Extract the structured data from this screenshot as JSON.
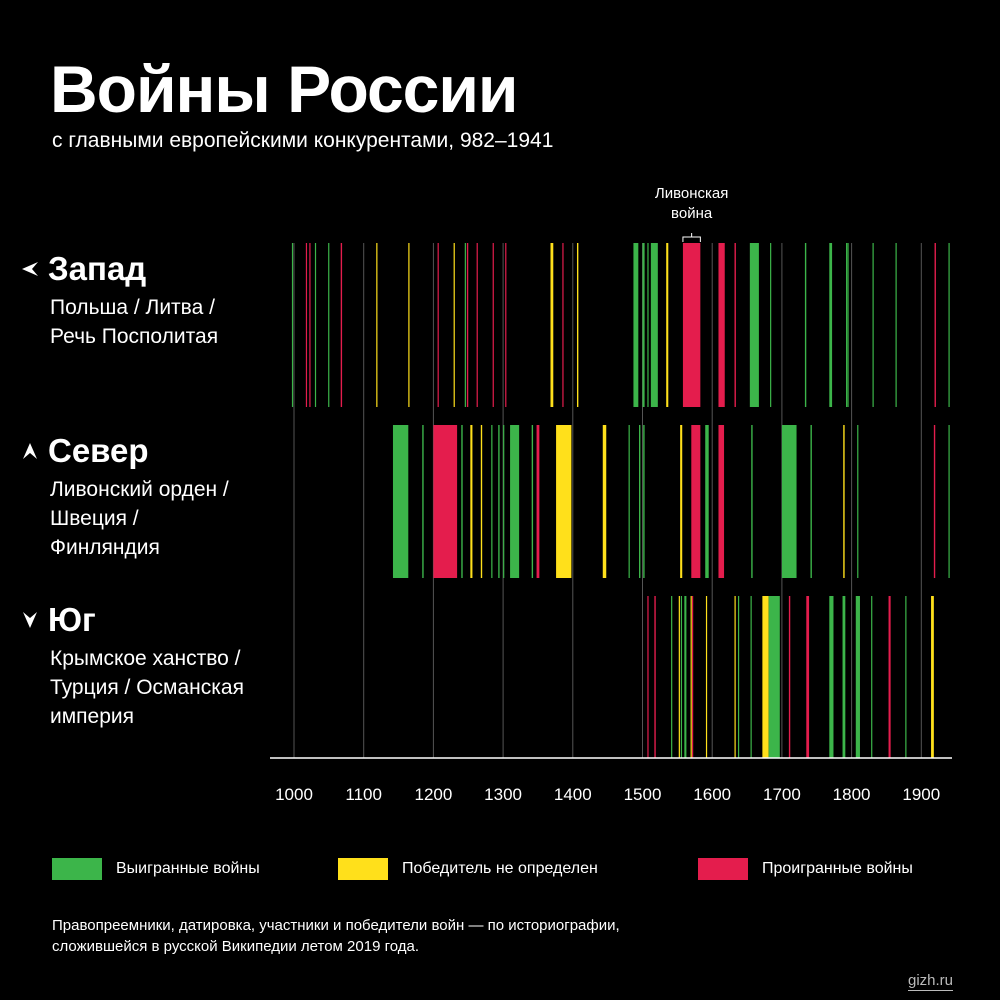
{
  "header": {
    "title": "Войны России",
    "subtitle": "с главными европейскими конкурентами, 982–1941"
  },
  "regions": [
    {
      "name": "Запад",
      "desc": "Польша / Литва /\nРечь Посполитая",
      "icon": "west-arrow-icon"
    },
    {
      "name": "Север",
      "desc": "Ливонский орден /\nШвеция /\nФинляндия",
      "icon": "north-arrow-icon"
    },
    {
      "name": "Юг",
      "desc": "Крымское ханство /\nТурция / Османская\nимперия",
      "icon": "south-arrow-icon"
    }
  ],
  "colors": {
    "won": "#3cb54a",
    "undecided": "#ffe01b",
    "lost": "#e41d4d",
    "gridline": "#555555",
    "background": "#000000"
  },
  "legend": {
    "won": "Выигранные войны",
    "undecided": "Победитель не определен",
    "lost": "Проигранные войны"
  },
  "note": "Правопреемники, датировка, участники и победители войн — по историографии,\nсложившейся в русской Википедии летом 2019 года.",
  "source": "gizh.ru",
  "chart_data": {
    "type": "bar",
    "title": "Войны России",
    "subtitle": "с главными европейскими конкурентами, 982–1941",
    "x_range": [
      982,
      1941
    ],
    "x_ticks": [
      1000,
      1100,
      1200,
      1300,
      1400,
      1500,
      1600,
      1700,
      1800,
      1900
    ],
    "grid": true,
    "annotation": {
      "label_line1": "Ливонская",
      "label_line2": "война",
      "start": 1558,
      "end": 1583
    },
    "series": [
      {
        "name": "Запад",
        "wars": [
          {
            "start": 997,
            "end": 998,
            "outcome": "won"
          },
          {
            "start": 1017,
            "end": 1018,
            "outcome": "lost"
          },
          {
            "start": 1022,
            "end": 1023,
            "outcome": "lost"
          },
          {
            "start": 1030,
            "end": 1031,
            "outcome": "won"
          },
          {
            "start": 1049,
            "end": 1050,
            "outcome": "won"
          },
          {
            "start": 1067,
            "end": 1069,
            "outcome": "lost"
          },
          {
            "start": 1118,
            "end": 1119,
            "outcome": "undecided"
          },
          {
            "start": 1164,
            "end": 1165,
            "outcome": "undecided"
          },
          {
            "start": 1206,
            "end": 1207,
            "outcome": "lost"
          },
          {
            "start": 1229,
            "end": 1230,
            "outcome": "undecided"
          },
          {
            "start": 1245,
            "end": 1246,
            "outcome": "won"
          },
          {
            "start": 1248,
            "end": 1250,
            "outcome": "lost"
          },
          {
            "start": 1262,
            "end": 1263,
            "outcome": "lost"
          },
          {
            "start": 1285,
            "end": 1286,
            "outcome": "lost"
          },
          {
            "start": 1303,
            "end": 1304,
            "outcome": "lost"
          },
          {
            "start": 1368,
            "end": 1372,
            "outcome": "undecided"
          },
          {
            "start": 1385,
            "end": 1386,
            "outcome": "lost"
          },
          {
            "start": 1406,
            "end": 1408,
            "outcome": "undecided"
          },
          {
            "start": 1487,
            "end": 1494,
            "outcome": "won"
          },
          {
            "start": 1500,
            "end": 1503,
            "outcome": "won"
          },
          {
            "start": 1507,
            "end": 1508,
            "outcome": "won"
          },
          {
            "start": 1512,
            "end": 1522,
            "outcome": "won"
          },
          {
            "start": 1534,
            "end": 1537,
            "outcome": "undecided"
          },
          {
            "start": 1558,
            "end": 1583,
            "outcome": "lost"
          },
          {
            "start": 1609,
            "end": 1618,
            "outcome": "lost"
          },
          {
            "start": 1632,
            "end": 1634,
            "outcome": "lost"
          },
          {
            "start": 1654,
            "end": 1667,
            "outcome": "won"
          },
          {
            "start": 1683,
            "end": 1684,
            "outcome": "won"
          },
          {
            "start": 1733,
            "end": 1735,
            "outcome": "won"
          },
          {
            "start": 1768,
            "end": 1772,
            "outcome": "won"
          },
          {
            "start": 1792,
            "end": 1793,
            "outcome": "won"
          },
          {
            "start": 1794,
            "end": 1795,
            "outcome": "won"
          },
          {
            "start": 1830,
            "end": 1831,
            "outcome": "won"
          },
          {
            "start": 1863,
            "end": 1864,
            "outcome": "won"
          },
          {
            "start": 1919,
            "end": 1921,
            "outcome": "lost"
          },
          {
            "start": 1939,
            "end": 1940,
            "outcome": "won"
          }
        ]
      },
      {
        "name": "Север",
        "wars": [
          {
            "start": 1142,
            "end": 1164,
            "outcome": "won"
          },
          {
            "start": 1184,
            "end": 1186,
            "outcome": "won"
          },
          {
            "start": 1200,
            "end": 1234,
            "outcome": "lost"
          },
          {
            "start": 1240,
            "end": 1242,
            "outcome": "won"
          },
          {
            "start": 1253,
            "end": 1256,
            "outcome": "undecided"
          },
          {
            "start": 1268,
            "end": 1270,
            "outcome": "undecided"
          },
          {
            "start": 1283,
            "end": 1284,
            "outcome": "won"
          },
          {
            "start": 1293,
            "end": 1295,
            "outcome": "won"
          },
          {
            "start": 1300,
            "end": 1301,
            "outcome": "won"
          },
          {
            "start": 1310,
            "end": 1323,
            "outcome": "won"
          },
          {
            "start": 1341,
            "end": 1343,
            "outcome": "won"
          },
          {
            "start": 1348,
            "end": 1352,
            "outcome": "lost"
          },
          {
            "start": 1376,
            "end": 1398,
            "outcome": "undecided"
          },
          {
            "start": 1443,
            "end": 1448,
            "outcome": "undecided"
          },
          {
            "start": 1480,
            "end": 1481,
            "outcome": "won"
          },
          {
            "start": 1495,
            "end": 1497,
            "outcome": "won"
          },
          {
            "start": 1501,
            "end": 1503,
            "outcome": "won"
          },
          {
            "start": 1554,
            "end": 1557,
            "outcome": "undecided"
          },
          {
            "start": 1570,
            "end": 1583,
            "outcome": "lost"
          },
          {
            "start": 1590,
            "end": 1595,
            "outcome": "won"
          },
          {
            "start": 1609,
            "end": 1617,
            "outcome": "lost"
          },
          {
            "start": 1656,
            "end": 1658,
            "outcome": "won"
          },
          {
            "start": 1700,
            "end": 1721,
            "outcome": "won"
          },
          {
            "start": 1741,
            "end": 1743,
            "outcome": "won"
          },
          {
            "start": 1788,
            "end": 1790,
            "outcome": "undecided"
          },
          {
            "start": 1808,
            "end": 1809,
            "outcome": "won"
          },
          {
            "start": 1918,
            "end": 1920,
            "outcome": "lost"
          },
          {
            "start": 1939,
            "end": 1940,
            "outcome": "won"
          }
        ]
      },
      {
        "name": "Юг",
        "wars": [
          {
            "start": 1507,
            "end": 1508,
            "outcome": "lost"
          },
          {
            "start": 1517,
            "end": 1519,
            "outcome": "lost"
          },
          {
            "start": 1541,
            "end": 1542,
            "outcome": "won"
          },
          {
            "start": 1552,
            "end": 1553,
            "outcome": "undecided"
          },
          {
            "start": 1555,
            "end": 1556,
            "outcome": "won"
          },
          {
            "start": 1560,
            "end": 1563,
            "outcome": "won"
          },
          {
            "start": 1569,
            "end": 1570,
            "outcome": "undecided"
          },
          {
            "start": 1571,
            "end": 1572,
            "outcome": "lost"
          },
          {
            "start": 1591,
            "end": 1592,
            "outcome": "undecided"
          },
          {
            "start": 1632,
            "end": 1633,
            "outcome": "undecided"
          },
          {
            "start": 1637,
            "end": 1638,
            "outcome": "won"
          },
          {
            "start": 1655,
            "end": 1656,
            "outcome": "won"
          },
          {
            "start": 1672,
            "end": 1681,
            "outcome": "undecided"
          },
          {
            "start": 1681,
            "end": 1697,
            "outcome": "won"
          },
          {
            "start": 1710,
            "end": 1712,
            "outcome": "lost"
          },
          {
            "start": 1735,
            "end": 1739,
            "outcome": "lost"
          },
          {
            "start": 1768,
            "end": 1774,
            "outcome": "won"
          },
          {
            "start": 1787,
            "end": 1791,
            "outcome": "won"
          },
          {
            "start": 1806,
            "end": 1812,
            "outcome": "won"
          },
          {
            "start": 1828,
            "end": 1829,
            "outcome": "won"
          },
          {
            "start": 1853,
            "end": 1856,
            "outcome": "lost"
          },
          {
            "start": 1877,
            "end": 1878,
            "outcome": "won"
          },
          {
            "start": 1914,
            "end": 1918,
            "outcome": "undecided"
          }
        ]
      }
    ]
  }
}
